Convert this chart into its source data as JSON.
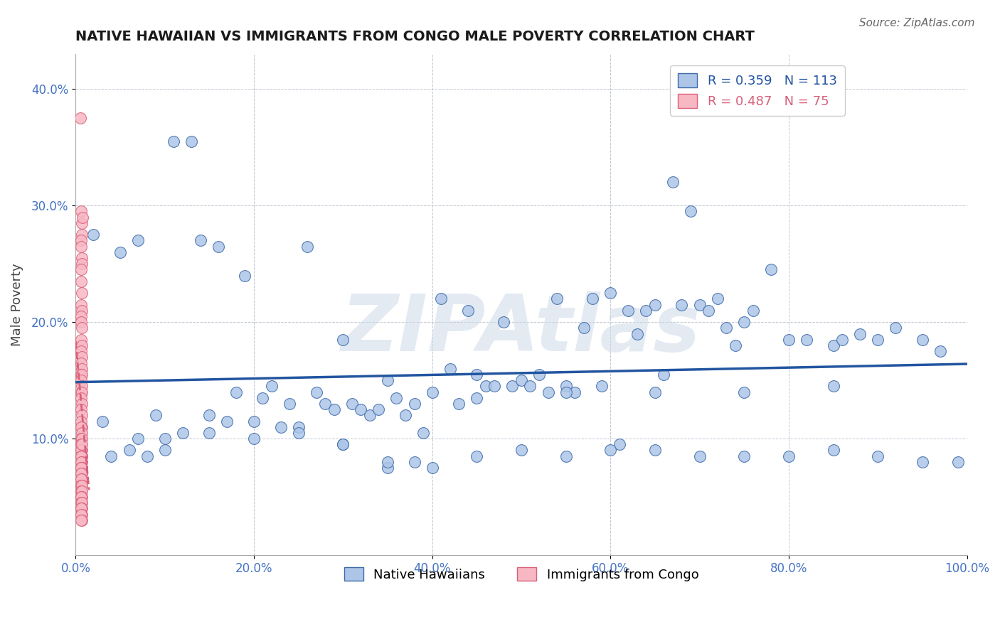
{
  "title": "NATIVE HAWAIIAN VS IMMIGRANTS FROM CONGO MALE POVERTY CORRELATION CHART",
  "source": "Source: ZipAtlas.com",
  "ylabel": "Male Poverty",
  "xlim": [
    0,
    1.0
  ],
  "ylim": [
    0,
    0.43
  ],
  "xticks": [
    0.0,
    0.2,
    0.4,
    0.6,
    0.8,
    1.0
  ],
  "yticks": [
    0.1,
    0.2,
    0.3,
    0.4
  ],
  "blue_color": "#adc6e8",
  "blue_edge_color": "#3d6aa8",
  "blue_line_color": "#2255a0",
  "pink_color": "#f7b8c4",
  "pink_edge_color": "#d9607a",
  "pink_line_color": "#d9607a",
  "blue_x": [
    0.02,
    0.05,
    0.07,
    0.09,
    0.11,
    0.13,
    0.14,
    0.16,
    0.18,
    0.19,
    0.21,
    0.22,
    0.24,
    0.26,
    0.27,
    0.28,
    0.29,
    0.3,
    0.31,
    0.32,
    0.33,
    0.34,
    0.35,
    0.36,
    0.37,
    0.38,
    0.39,
    0.4,
    0.41,
    0.42,
    0.43,
    0.44,
    0.45,
    0.46,
    0.47,
    0.48,
    0.49,
    0.5,
    0.51,
    0.52,
    0.53,
    0.54,
    0.55,
    0.56,
    0.57,
    0.58,
    0.59,
    0.6,
    0.61,
    0.62,
    0.63,
    0.64,
    0.65,
    0.66,
    0.67,
    0.68,
    0.69,
    0.7,
    0.71,
    0.72,
    0.73,
    0.74,
    0.75,
    0.76,
    0.78,
    0.8,
    0.82,
    0.85,
    0.86,
    0.88,
    0.9,
    0.92,
    0.95,
    0.97,
    0.99,
    0.04,
    0.06,
    0.08,
    0.1,
    0.12,
    0.15,
    0.17,
    0.2,
    0.23,
    0.25,
    0.3,
    0.35,
    0.38,
    0.4,
    0.45,
    0.5,
    0.55,
    0.6,
    0.65,
    0.7,
    0.75,
    0.8,
    0.85,
    0.9,
    0.95,
    0.03,
    0.07,
    0.1,
    0.15,
    0.2,
    0.25,
    0.3,
    0.35,
    0.45,
    0.55,
    0.65,
    0.75,
    0.85
  ],
  "blue_y": [
    0.275,
    0.26,
    0.27,
    0.12,
    0.355,
    0.355,
    0.27,
    0.265,
    0.14,
    0.24,
    0.135,
    0.145,
    0.13,
    0.265,
    0.14,
    0.13,
    0.125,
    0.185,
    0.13,
    0.125,
    0.12,
    0.125,
    0.15,
    0.135,
    0.12,
    0.13,
    0.105,
    0.14,
    0.22,
    0.16,
    0.13,
    0.21,
    0.135,
    0.145,
    0.145,
    0.2,
    0.145,
    0.15,
    0.145,
    0.155,
    0.14,
    0.22,
    0.145,
    0.14,
    0.195,
    0.22,
    0.145,
    0.225,
    0.095,
    0.21,
    0.19,
    0.21,
    0.215,
    0.155,
    0.32,
    0.215,
    0.295,
    0.215,
    0.21,
    0.22,
    0.195,
    0.18,
    0.2,
    0.21,
    0.245,
    0.185,
    0.185,
    0.18,
    0.185,
    0.19,
    0.185,
    0.195,
    0.185,
    0.175,
    0.08,
    0.085,
    0.09,
    0.085,
    0.09,
    0.105,
    0.12,
    0.115,
    0.115,
    0.11,
    0.11,
    0.095,
    0.075,
    0.08,
    0.075,
    0.085,
    0.09,
    0.085,
    0.09,
    0.09,
    0.085,
    0.085,
    0.085,
    0.09,
    0.085,
    0.08,
    0.115,
    0.1,
    0.1,
    0.105,
    0.1,
    0.105,
    0.095,
    0.08,
    0.155,
    0.14,
    0.14,
    0.14,
    0.145
  ],
  "pink_x": [
    0.005,
    0.006,
    0.007,
    0.008,
    0.007,
    0.006,
    0.006,
    0.007,
    0.007,
    0.006,
    0.006,
    0.007,
    0.006,
    0.007,
    0.006,
    0.006,
    0.007,
    0.006,
    0.007,
    0.006,
    0.007,
    0.006,
    0.007,
    0.006,
    0.007,
    0.006,
    0.007,
    0.006,
    0.007,
    0.006,
    0.007,
    0.006,
    0.007,
    0.006,
    0.007,
    0.006,
    0.007,
    0.006,
    0.007,
    0.006,
    0.007,
    0.006,
    0.007,
    0.006,
    0.007,
    0.006,
    0.007,
    0.006,
    0.007,
    0.006,
    0.007,
    0.006,
    0.007,
    0.006,
    0.007,
    0.006,
    0.007,
    0.006,
    0.007,
    0.006,
    0.007,
    0.006,
    0.007,
    0.006,
    0.007,
    0.006,
    0.007,
    0.006,
    0.007,
    0.006,
    0.007,
    0.006,
    0.007,
    0.006,
    0.007
  ],
  "pink_y": [
    0.375,
    0.295,
    0.285,
    0.29,
    0.275,
    0.27,
    0.265,
    0.255,
    0.25,
    0.245,
    0.235,
    0.225,
    0.215,
    0.21,
    0.205,
    0.2,
    0.195,
    0.185,
    0.18,
    0.175,
    0.17,
    0.165,
    0.16,
    0.155,
    0.155,
    0.15,
    0.145,
    0.14,
    0.14,
    0.135,
    0.13,
    0.125,
    0.12,
    0.115,
    0.11,
    0.11,
    0.105,
    0.1,
    0.1,
    0.095,
    0.09,
    0.09,
    0.085,
    0.085,
    0.085,
    0.085,
    0.08,
    0.08,
    0.075,
    0.075,
    0.075,
    0.075,
    0.07,
    0.07,
    0.065,
    0.065,
    0.06,
    0.06,
    0.06,
    0.055,
    0.055,
    0.05,
    0.05,
    0.05,
    0.045,
    0.045,
    0.045,
    0.04,
    0.04,
    0.04,
    0.035,
    0.035,
    0.03,
    0.03,
    0.095
  ],
  "watermark": "ZIPAtlas",
  "legend_blue_label_r": "R = 0.359",
  "legend_blue_label_n": "N = 113",
  "legend_pink_label_r": "R = 0.487",
  "legend_pink_label_n": "N = 75",
  "legend1_label": "Native Hawaiians",
  "legend2_label": "Immigrants from Congo"
}
